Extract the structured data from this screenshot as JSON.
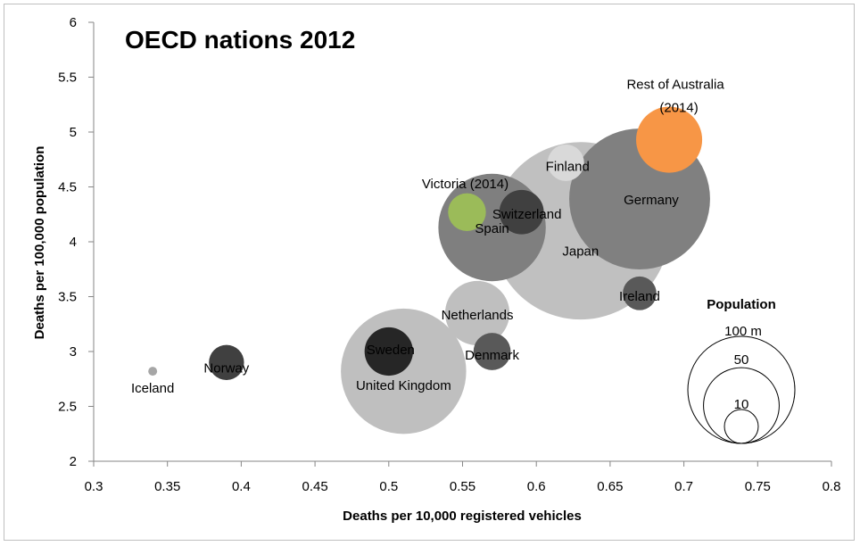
{
  "chart_data": {
    "type": "bubble",
    "title": "OECD nations 2012",
    "xlabel": "Deaths per 10,000 registered vehicles",
    "ylabel": "Deaths per 100,000 population",
    "xlim": [
      0.3,
      0.8
    ],
    "ylim": [
      2,
      6
    ],
    "x_ticks": [
      "0.3",
      "0.35",
      "0.4",
      "0.45",
      "0.5",
      "0.55",
      "0.6",
      "0.65",
      "0.7",
      "0.75",
      "0.8"
    ],
    "y_ticks": [
      "2",
      "2.5",
      "3",
      "3.5",
      "4",
      "4.5",
      "5",
      "5.5",
      "6"
    ],
    "grid": false,
    "points": [
      {
        "label": "Iceland",
        "x": 0.34,
        "y": 2.82,
        "population_m": 0.32,
        "color": "#a6a6a6"
      },
      {
        "label": "Norway",
        "x": 0.39,
        "y": 2.9,
        "population_m": 5.0,
        "color": "#404040"
      },
      {
        "label": "United Kingdom",
        "x": 0.51,
        "y": 2.82,
        "population_m": 63.7,
        "color": "#bfbfbf"
      },
      {
        "label": "Sweden",
        "x": 0.5,
        "y": 3.0,
        "population_m": 9.5,
        "color": "#262626"
      },
      {
        "label": "Netherlands",
        "x": 0.56,
        "y": 3.35,
        "population_m": 16.8,
        "color": "#bfbfbf"
      },
      {
        "label": "Denmark",
        "x": 0.57,
        "y": 3.0,
        "population_m": 5.6,
        "color": "#595959"
      },
      {
        "label": "Japan",
        "x": 0.63,
        "y": 4.1,
        "population_m": 127.6,
        "color": "#c0c0c0"
      },
      {
        "label": "Spain",
        "x": 0.57,
        "y": 4.13,
        "population_m": 46.8,
        "color": "#7f7f7f"
      },
      {
        "label": "Switzerland",
        "x": 0.59,
        "y": 4.27,
        "population_m": 8.0,
        "color": "#404040"
      },
      {
        "label": "Victoria (2014)",
        "x": 0.553,
        "y": 4.27,
        "population_m": 5.8,
        "color": "#9bbb59"
      },
      {
        "label": "Finland",
        "x": 0.62,
        "y": 4.72,
        "population_m": 5.4,
        "color": "#d9d9d9"
      },
      {
        "label": "Germany",
        "x": 0.67,
        "y": 4.39,
        "population_m": 80.5,
        "color": "#808080"
      },
      {
        "label": "Ireland",
        "x": 0.67,
        "y": 3.53,
        "population_m": 4.6,
        "color": "#595959"
      },
      {
        "label": "Rest of Australia (2014)",
        "x": 0.69,
        "y": 4.93,
        "population_m": 17.7,
        "color": "#f79646"
      }
    ],
    "legend": {
      "title": "Population",
      "entries": [
        {
          "label": "100 m",
          "population_m": 100
        },
        {
          "label": "50",
          "population_m": 50
        },
        {
          "label": "10",
          "population_m": 10
        }
      ]
    }
  }
}
